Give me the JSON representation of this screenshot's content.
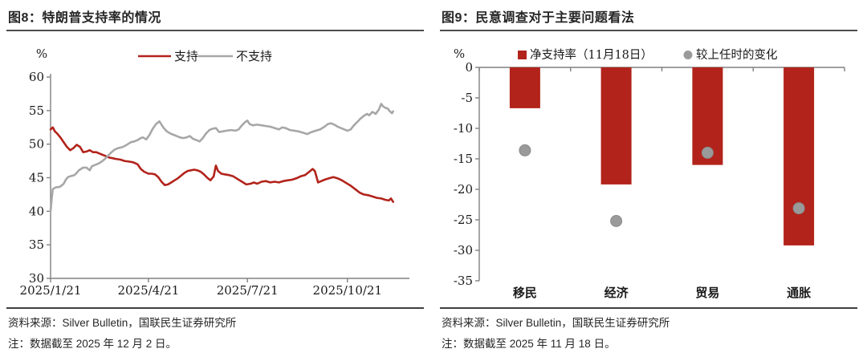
{
  "panels": {
    "left": {
      "title": "图8：特朗普支持率的情况",
      "source": "资料来源：Silver Bulletin，国联民生证券研究所",
      "note": "注：数据截至 2025 年 12 月 2 日。"
    },
    "right": {
      "title": "图9：民意调查对于主要问题看法",
      "source": "资料来源：Silver Bulletin，国联民生证券研究所",
      "note": "注：数据截至 2025 年 11 月 18 日。"
    }
  },
  "colors": {
    "red": "#B2231B",
    "gray_line": "#A7A7A7",
    "dot_gray": "#9A9A9A",
    "dot_edge": "#8B8B8B",
    "axis": "#808080",
    "text": "#1A1A1A"
  },
  "chart_data": [
    {
      "type": "line",
      "title": "图8：特朗普支持率的情况",
      "ylabel": "%",
      "xlabel": "",
      "ylim": [
        30,
        60
      ],
      "yticks": [
        60,
        55,
        50,
        45,
        40,
        35,
        30
      ],
      "xlim_days": [
        0,
        330
      ],
      "xticks": [
        {
          "day": 0,
          "label": "2025/1/21"
        },
        {
          "day": 90,
          "label": "2025/4/21"
        },
        {
          "day": 181,
          "label": "2025/7/21"
        },
        {
          "day": 273,
          "label": "2025/10/21"
        }
      ],
      "grid": false,
      "legend_position": "top",
      "series": [
        {
          "name": "支持",
          "color": "#B2231B",
          "points": [
            [
              0,
              52.2
            ],
            [
              2,
              52.5
            ],
            [
              4,
              51.9
            ],
            [
              6,
              51.6
            ],
            [
              9,
              51.0
            ],
            [
              12,
              50.3
            ],
            [
              15,
              49.6
            ],
            [
              18,
              49.1
            ],
            [
              21,
              49.4
            ],
            [
              24,
              49.9
            ],
            [
              27,
              49.6
            ],
            [
              30,
              48.8
            ],
            [
              33,
              48.9
            ],
            [
              36,
              49.1
            ],
            [
              39,
              48.8
            ],
            [
              42,
              48.8
            ],
            [
              45,
              48.6
            ],
            [
              48,
              48.4
            ],
            [
              51,
              48.2
            ],
            [
              54,
              48.0
            ],
            [
              57,
              47.9
            ],
            [
              60,
              47.8
            ],
            [
              64,
              47.7
            ],
            [
              68,
              47.5
            ],
            [
              72,
              47.4
            ],
            [
              76,
              47.3
            ],
            [
              80,
              47.0
            ],
            [
              83,
              46.3
            ],
            [
              86,
              45.9
            ],
            [
              90,
              45.6
            ],
            [
              93,
              45.6
            ],
            [
              96,
              45.5
            ],
            [
              99,
              45.1
            ],
            [
              102,
              44.4
            ],
            [
              105,
              43.9
            ],
            [
              108,
              44.0
            ],
            [
              111,
              44.3
            ],
            [
              114,
              44.6
            ],
            [
              117,
              44.9
            ],
            [
              120,
              45.3
            ],
            [
              123,
              45.7
            ],
            [
              126,
              46.0
            ],
            [
              129,
              46.1
            ],
            [
              132,
              46.2
            ],
            [
              135,
              46.1
            ],
            [
              138,
              45.9
            ],
            [
              141,
              45.5
            ],
            [
              144,
              45.0
            ],
            [
              147,
              44.6
            ],
            [
              150,
              45.2
            ],
            [
              152,
              46.8
            ],
            [
              154,
              46.0
            ],
            [
              157,
              45.6
            ],
            [
              160,
              45.5
            ],
            [
              164,
              45.4
            ],
            [
              168,
              45.2
            ],
            [
              172,
              44.8
            ],
            [
              176,
              44.4
            ],
            [
              180,
              44.0
            ],
            [
              184,
              44.1
            ],
            [
              187,
              44.3
            ],
            [
              190,
              44.1
            ],
            [
              194,
              44.4
            ],
            [
              198,
              44.5
            ],
            [
              202,
              44.3
            ],
            [
              206,
              44.4
            ],
            [
              210,
              44.3
            ],
            [
              214,
              44.5
            ],
            [
              218,
              44.6
            ],
            [
              222,
              44.7
            ],
            [
              226,
              44.9
            ],
            [
              230,
              45.2
            ],
            [
              234,
              45.4
            ],
            [
              238,
              45.9
            ],
            [
              241,
              46.3
            ],
            [
              243,
              46.0
            ],
            [
              246,
              44.3
            ],
            [
              249,
              44.5
            ],
            [
              252,
              44.7
            ],
            [
              256,
              44.9
            ],
            [
              260,
              45.1
            ],
            [
              264,
              44.9
            ],
            [
              268,
              44.6
            ],
            [
              272,
              44.2
            ],
            [
              276,
              43.8
            ],
            [
              280,
              43.3
            ],
            [
              284,
              42.8
            ],
            [
              288,
              42.5
            ],
            [
              292,
              42.4
            ],
            [
              296,
              42.2
            ],
            [
              300,
              42.0
            ],
            [
              304,
              41.9
            ],
            [
              308,
              41.7
            ],
            [
              311,
              41.6
            ],
            [
              313,
              41.9
            ],
            [
              315,
              41.4
            ]
          ]
        },
        {
          "name": "不支持",
          "color": "#A7A7A7",
          "points": [
            [
              0,
              40.0
            ],
            [
              1,
              41.8
            ],
            [
              2,
              43.3
            ],
            [
              4,
              43.5
            ],
            [
              6,
              43.6
            ],
            [
              8,
              43.6
            ],
            [
              10,
              43.8
            ],
            [
              12,
              44.1
            ],
            [
              14,
              44.7
            ],
            [
              16,
              45.1
            ],
            [
              18,
              45.2
            ],
            [
              20,
              45.3
            ],
            [
              22,
              45.4
            ],
            [
              24,
              45.7
            ],
            [
              26,
              46.1
            ],
            [
              28,
              46.3
            ],
            [
              30,
              46.5
            ],
            [
              33,
              46.5
            ],
            [
              36,
              46.1
            ],
            [
              38,
              46.7
            ],
            [
              41,
              46.9
            ],
            [
              44,
              47.1
            ],
            [
              47,
              47.4
            ],
            [
              50,
              47.8
            ],
            [
              53,
              48.3
            ],
            [
              56,
              48.8
            ],
            [
              59,
              49.2
            ],
            [
              62,
              49.4
            ],
            [
              65,
              49.5
            ],
            [
              68,
              49.7
            ],
            [
              71,
              50.0
            ],
            [
              74,
              50.3
            ],
            [
              77,
              50.4
            ],
            [
              80,
              50.6
            ],
            [
              83,
              50.9
            ],
            [
              85,
              51.0
            ],
            [
              88,
              50.7
            ],
            [
              91,
              51.4
            ],
            [
              94,
              52.3
            ],
            [
              97,
              53.0
            ],
            [
              100,
              53.4
            ],
            [
              102,
              52.9
            ],
            [
              104,
              52.4
            ],
            [
              107,
              51.9
            ],
            [
              110,
              51.6
            ],
            [
              113,
              51.4
            ],
            [
              116,
              51.2
            ],
            [
              119,
              51.0
            ],
            [
              122,
              50.9
            ],
            [
              125,
              51.0
            ],
            [
              128,
              51.2
            ],
            [
              131,
              50.8
            ],
            [
              134,
              50.6
            ],
            [
              137,
              50.4
            ],
            [
              140,
              50.9
            ],
            [
              143,
              51.6
            ],
            [
              146,
              52.1
            ],
            [
              149,
              52.3
            ],
            [
              152,
              52.4
            ],
            [
              155,
              51.8
            ],
            [
              158,
              51.9
            ],
            [
              162,
              52.0
            ],
            [
              166,
              52.1
            ],
            [
              170,
              52.0
            ],
            [
              173,
              52.2
            ],
            [
              176,
              52.8
            ],
            [
              179,
              53.3
            ],
            [
              181,
              53.5
            ],
            [
              183,
              53.0
            ],
            [
              186,
              52.8
            ],
            [
              190,
              52.9
            ],
            [
              194,
              52.8
            ],
            [
              198,
              52.7
            ],
            [
              202,
              52.6
            ],
            [
              206,
              52.4
            ],
            [
              210,
              52.2
            ],
            [
              213,
              52.5
            ],
            [
              216,
              52.4
            ],
            [
              220,
              52.1
            ],
            [
              224,
              52.0
            ],
            [
              228,
              51.9
            ],
            [
              232,
              51.7
            ],
            [
              236,
              51.5
            ],
            [
              240,
              51.8
            ],
            [
              244,
              52.0
            ],
            [
              248,
              52.2
            ],
            [
              252,
              52.6
            ],
            [
              255,
              53.0
            ],
            [
              258,
              53.1
            ],
            [
              261,
              52.9
            ],
            [
              264,
              52.6
            ],
            [
              267,
              52.4
            ],
            [
              270,
              52.2
            ],
            [
              273,
              52.0
            ],
            [
              276,
              52.2
            ],
            [
              279,
              52.8
            ],
            [
              282,
              53.3
            ],
            [
              285,
              53.8
            ],
            [
              288,
              54.2
            ],
            [
              291,
              54.5
            ],
            [
              293,
              54.3
            ],
            [
              296,
              54.8
            ],
            [
              299,
              54.5
            ],
            [
              302,
              55.2
            ],
            [
              304,
              56.0
            ],
            [
              306,
              55.6
            ],
            [
              308,
              55.4
            ],
            [
              310,
              55.3
            ],
            [
              312,
              54.9
            ],
            [
              314,
              54.6
            ],
            [
              315,
              54.9
            ]
          ]
        }
      ]
    },
    {
      "type": "bar",
      "title": "图9：民意调查对于主要问题看法",
      "ylabel": "%",
      "xlabel": "",
      "ylim": [
        -35,
        0
      ],
      "yticks": [
        0,
        -5,
        -10,
        -15,
        -20,
        -25,
        -30,
        -35
      ],
      "categories": [
        "移民",
        "经济",
        "贸易",
        "通胀"
      ],
      "grid": false,
      "legend_position": "top",
      "series": [
        {
          "name": "净支持率（11月18日）",
          "marker": "bar",
          "color": "#B2231B",
          "values": [
            -6.7,
            -19.2,
            -16.0,
            -29.2
          ]
        },
        {
          "name": "较上任时的变化",
          "marker": "dot",
          "color": "#9A9A9A",
          "values": [
            -13.6,
            -25.2,
            -14.0,
            -23.1
          ]
        }
      ]
    }
  ]
}
